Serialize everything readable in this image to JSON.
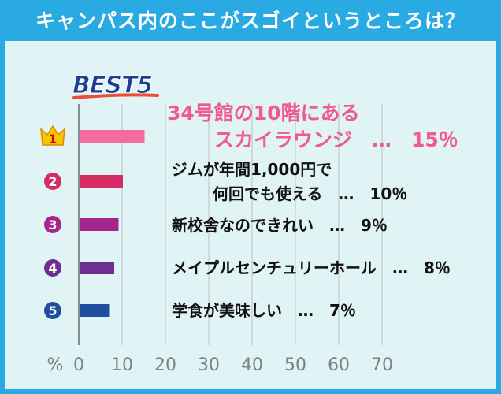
{
  "title": "キャンパス内のここがスゴイというところは？",
  "colors": {
    "title_bg": "#2aaae2",
    "panel_bg": "#e0f3f5",
    "grid": "#c9cfd3",
    "axis": "#8a8f94",
    "best_text": "#1b3f93",
    "best_underline": "#e8503a",
    "top_label": "#f05a8c"
  },
  "best_label": "BEST5",
  "chart_data": {
    "type": "bar",
    "orientation": "horizontal",
    "xlabel": "%",
    "xlim": [
      0,
      70
    ],
    "x_ticks": [
      "0",
      "10",
      "20",
      "30",
      "40",
      "50",
      "60",
      "70"
    ],
    "grid": true,
    "categories": [
      {
        "rank": "1",
        "badge": "crown-icon",
        "label_lines": [
          "34号館の10階にある",
          "スカイラウンジ　…　15％"
        ],
        "value": 15,
        "bar_color": "#f26c9c",
        "badge_color": "#f5c700",
        "label_color": "#f05a8c"
      },
      {
        "rank": "2",
        "badge": "circle-badge",
        "label_lines": [
          "ジムが年間1,000円で",
          "何回でも使える　…　10％"
        ],
        "value": 10,
        "bar_color": "#d52c63",
        "badge_color": "#d52c63",
        "label_color": "#111111"
      },
      {
        "rank": "3",
        "badge": "circle-badge",
        "label_lines": [
          "新校舎なのできれい　…　9％"
        ],
        "value": 9,
        "bar_color": "#a5278e",
        "badge_color": "#a5278e",
        "label_color": "#111111"
      },
      {
        "rank": "4",
        "badge": "circle-badge",
        "label_lines": [
          "メイプルセンチュリーホール　…　8％"
        ],
        "value": 8,
        "bar_color": "#6e2f91",
        "badge_color": "#6e2f91",
        "label_color": "#111111"
      },
      {
        "rank": "5",
        "badge": "circle-badge",
        "label_lines": [
          "学食が美味しい　…　7％"
        ],
        "value": 7,
        "bar_color": "#1f4f9e",
        "badge_color": "#1f4f9e",
        "label_color": "#111111"
      }
    ]
  }
}
